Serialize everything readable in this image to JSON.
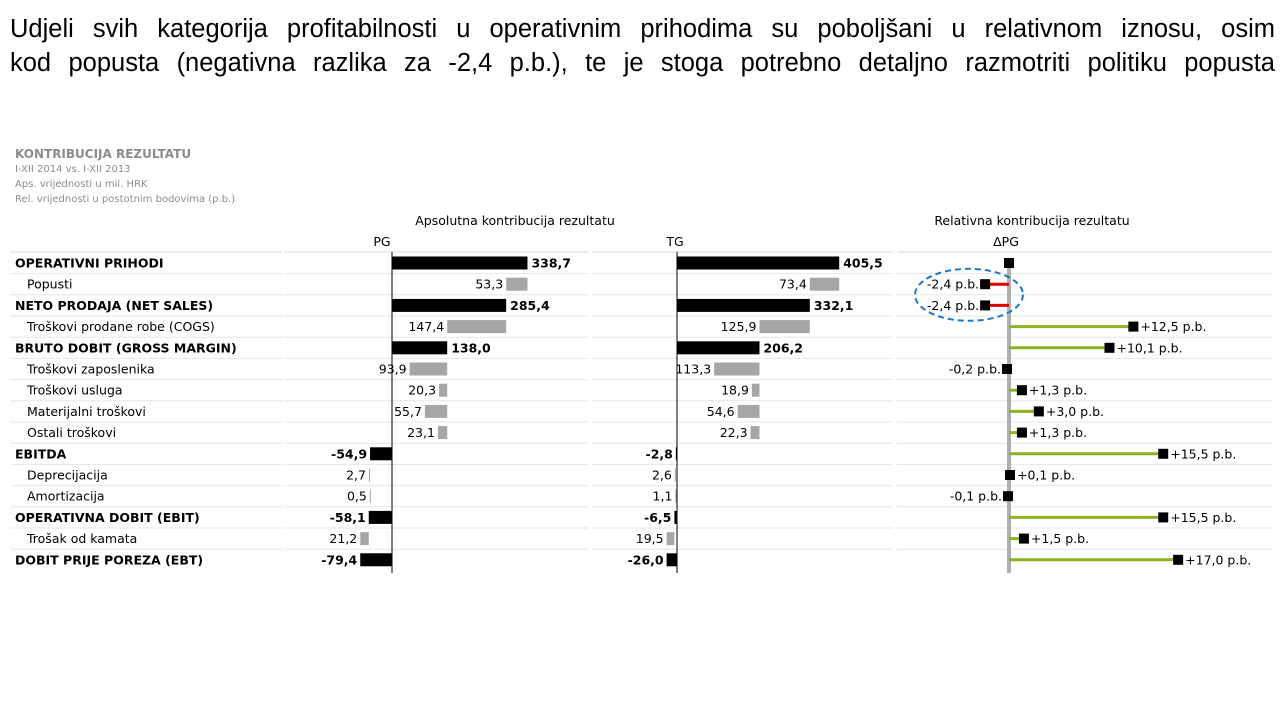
{
  "title": {
    "line1": "Udjeli svih kategorija profitabilnosti u operativnim prihodima su poboljšani u relativnom iznosu, osim",
    "line2": "kod popusta (negativna razlika za -2,4 p.b.), te je stoga potrebno detaljno razmotriti politiku popusta"
  },
  "chart_header": {
    "heading": "KONTRIBUCIJA REZULTATU",
    "period": "I-XII 2014 vs. I-XII 2013",
    "abs_note": "Aps. vrijednosti u mil. HRK",
    "rel_note": "Rel. vrijednosti u postotnim bodovima (p.b.)"
  },
  "colors": {
    "total_bar": "#000000",
    "item_bar": "#a6a6a6",
    "positive_line": "#8db320",
    "negative_line": "#e00000",
    "axis_line": "#b0b0b0",
    "highlight_ellipse": "#1f78c8"
  },
  "chart_data": [
    {
      "type": "bar",
      "orientation": "horizontal",
      "group_title": "Apsolutna kontribucija rezultatu",
      "title": "PG",
      "categories": [
        "OPERATIVNI PRIHODI",
        "Popusti",
        "NETO PRODAJA (NET SALES)",
        "Troškovi prodane robe (COGS)",
        "BRUTO DOBIT (GROSS MARGIN)",
        "Troškovi zaposlenika",
        "Troškovi usluga",
        "Materijalni troškovi",
        "Ostali troškovi",
        "EBITDA",
        "Deprecijacija",
        "Amortizacija",
        "OPERATIVNA DOBIT (EBIT)",
        "Trošak od kamata",
        "DOBIT PRIJE POREZA (EBT)"
      ],
      "is_total": [
        true,
        false,
        true,
        false,
        true,
        false,
        false,
        false,
        false,
        true,
        false,
        false,
        true,
        false,
        true
      ],
      "values": [
        338.7,
        53.3,
        285.4,
        147.4,
        138.0,
        93.9,
        20.3,
        55.7,
        23.1,
        -54.9,
        2.7,
        0.5,
        -58.1,
        21.2,
        -79.4
      ],
      "labels": [
        "338,7",
        "53,3",
        "285,4",
        "147,4",
        "138,0",
        "93,9",
        "20,3",
        "55,7",
        "23,1",
        "-54,9",
        "2,7",
        "0,5",
        "-58,1",
        "21,2",
        "-79,4"
      ]
    },
    {
      "type": "bar",
      "orientation": "horizontal",
      "title": "TG",
      "categories": [
        "OPERATIVNI PRIHODI",
        "Popusti",
        "NETO PRODAJA (NET SALES)",
        "Troškovi prodane robe (COGS)",
        "BRUTO DOBIT (GROSS MARGIN)",
        "Troškovi zaposlenika",
        "Troškovi usluga",
        "Materijalni troškovi",
        "Ostali troškovi",
        "EBITDA",
        "Deprecijacija",
        "Amortizacija",
        "OPERATIVNA DOBIT (EBIT)",
        "Trošak od kamata",
        "DOBIT PRIJE POREZA (EBT)"
      ],
      "is_total": [
        true,
        false,
        true,
        false,
        true,
        false,
        false,
        false,
        false,
        true,
        false,
        false,
        true,
        false,
        true
      ],
      "values": [
        405.5,
        73.4,
        332.1,
        125.9,
        206.2,
        113.3,
        18.9,
        54.6,
        22.3,
        -2.8,
        2.6,
        1.1,
        -6.5,
        19.5,
        -26.0
      ],
      "labels": [
        "405,5",
        "73,4",
        "332,1",
        "125,9",
        "206,2",
        "113,3",
        "18,9",
        "54,6",
        "22,3",
        "-2,8",
        "2,6",
        "1,1",
        "-6,5",
        "19,5",
        "-26,0"
      ]
    },
    {
      "type": "scatter",
      "group_title": "Relativna kontribucija rezultatu",
      "title": "ΔPG",
      "categories": [
        "OPERATIVNI PRIHODI",
        "Popusti",
        "NETO PRODAJA (NET SALES)",
        "Troškovi prodane robe (COGS)",
        "BRUTO DOBIT (GROSS MARGIN)",
        "Troškovi zaposlenika",
        "Troškovi usluga",
        "Materijalni troškovi",
        "Ostali troškovi",
        "EBITDA",
        "Deprecijacija",
        "Amortizacija",
        "OPERATIVNA DOBIT (EBIT)",
        "Trošak od kamata",
        "DOBIT PRIJE POREZA (EBT)"
      ],
      "values": [
        0.0,
        -2.4,
        -2.4,
        12.5,
        10.1,
        -0.2,
        1.3,
        3.0,
        1.3,
        15.5,
        0.1,
        -0.1,
        15.5,
        1.5,
        17.0
      ],
      "labels": [
        "",
        "-2,4 p.b.",
        "-2,4 p.b.",
        "+12,5 p.b.",
        "+10,1 p.b.",
        "-0,2 p.b.",
        "+1,3 p.b.",
        "+3,0 p.b.",
        "+1,3 p.b.",
        "+15,5 p.b.",
        "+0,1 p.b.",
        "-0,1 p.b.",
        "+15,5 p.b.",
        "+1,5 p.b.",
        "+17,0 p.b."
      ],
      "unit": "p.b.",
      "highlighted": [
        "Popusti",
        "NETO PRODAJA (NET SALES)"
      ]
    }
  ]
}
